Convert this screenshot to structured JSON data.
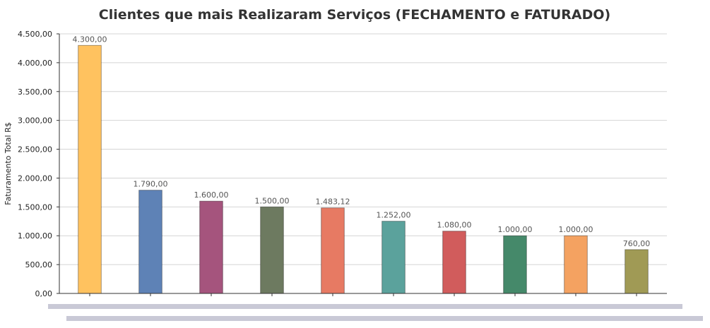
{
  "chart_data": {
    "type": "bar",
    "title": "Clientes que mais Realizaram Serviços (FECHAMENTO e FATURADO)",
    "xlabel": "",
    "ylabel": "Faturamento Total R$",
    "ylim": [
      0,
      4500
    ],
    "yticks": [
      "0,00",
      "500,00",
      "1.000,00",
      "1.500,00",
      "2.000,00",
      "2.500,00",
      "3.000,00",
      "3.500,00",
      "4.000,00",
      "4.500,00"
    ],
    "grid": true,
    "legend": "none",
    "categories": [
      "",
      "",
      "",
      "",
      "",
      "",
      "",
      "",
      "",
      ""
    ],
    "values": [
      4300,
      1790,
      1600,
      1500,
      1483.12,
      1252,
      1080,
      1000,
      1000,
      760
    ],
    "value_labels": [
      "4.300,00",
      "1.790,00",
      "1.600,00",
      "1.500,00",
      "1.483,12",
      "1.252,00",
      "1.080,00",
      "1.000,00",
      "1.000,00",
      "760,00"
    ],
    "colors": [
      "#FFC25F",
      "#5E82B6",
      "#A5547D",
      "#6D7A60",
      "#E77A63",
      "#5BA29C",
      "#D15C5C",
      "#45896A",
      "#F4A261",
      "#A09A55"
    ]
  },
  "scrollbars": {
    "track_color": "#c9c9d6"
  }
}
